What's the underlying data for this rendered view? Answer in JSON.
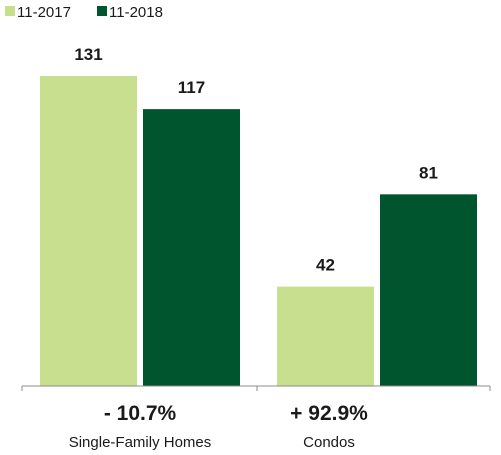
{
  "chart_data": {
    "type": "bar",
    "categories": [
      "Single-Family Homes",
      "Condos"
    ],
    "series": [
      {
        "name": "11-2017",
        "color": "#c8df8f",
        "values": [
          131,
          42
        ]
      },
      {
        "name": "11-2018",
        "color": "#00552e",
        "values": [
          117,
          81
        ]
      }
    ],
    "change_labels": [
      "- 10.7%",
      "+ 92.9%"
    ],
    "ylim": [
      0,
      131
    ],
    "legend_position": "top-left",
    "grid": false
  }
}
